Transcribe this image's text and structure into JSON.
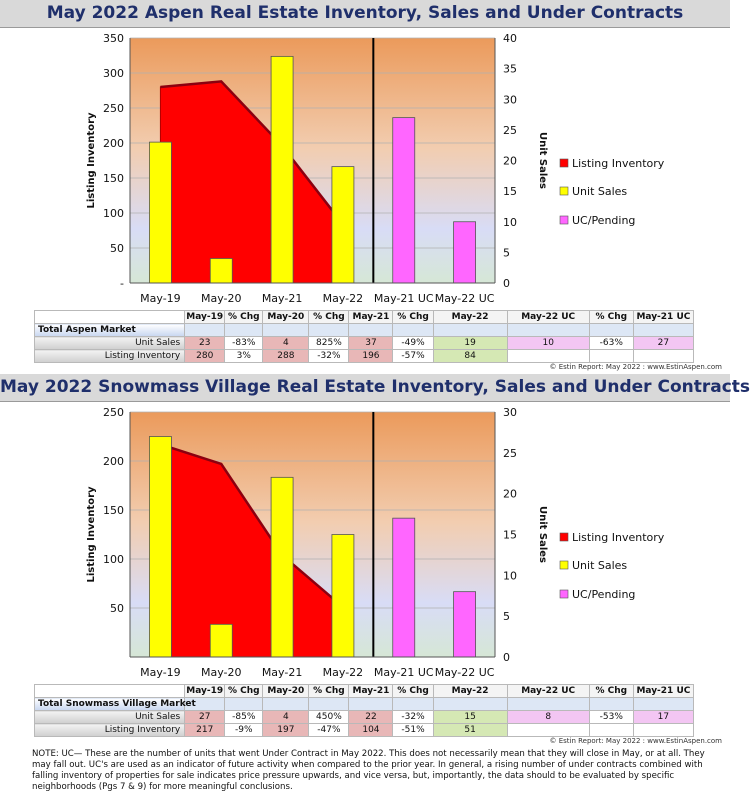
{
  "panels": [
    {
      "title": "May 2022 Aspen Real Estate Inventory, Sales and Under Contracts",
      "chart_data": {
        "type": "bar",
        "categories": [
          "May-19",
          "May-20",
          "May-21",
          "May-22",
          "May-21 UC",
          "May-22 UC"
        ],
        "ylabel": "Listing Inventory",
        "y2label": "Unit Sales",
        "ylim": [
          0,
          350
        ],
        "y2lim": [
          0,
          40
        ],
        "yticks": [
          "350",
          "300",
          "250",
          "200",
          "150",
          "100",
          "50",
          "-"
        ],
        "y2ticks": [
          "40",
          "35",
          "30",
          "25",
          "20",
          "15",
          "10",
          "5",
          "0"
        ],
        "series": [
          {
            "name": "Listing Inventory",
            "type": "area",
            "axis": "left",
            "color": "#ff0000",
            "values": [
              280,
              288,
              196,
              84,
              null,
              null
            ]
          },
          {
            "name": "Unit Sales",
            "type": "bar",
            "axis": "right",
            "color": "#ffff00",
            "values": [
              23,
              4,
              37,
              19,
              null,
              null
            ]
          },
          {
            "name": "UC/Pending",
            "type": "bar",
            "axis": "right",
            "color": "#ff66ff",
            "values": [
              null,
              null,
              null,
              null,
              27,
              10
            ]
          }
        ],
        "legend": [
          "Listing Inventory",
          "Unit Sales",
          "UC/Pending"
        ],
        "legend_position": "right"
      },
      "table": {
        "market": "Total Aspen Market",
        "headers": [
          "May-19",
          "% Chg",
          "May-20",
          "% Chg",
          "May-21",
          "% Chg",
          "May-22",
          "May-22 UC",
          "% Chg",
          "May-21 UC"
        ],
        "rows": [
          {
            "label": "Unit Sales",
            "cells": [
              "23",
              "-83%",
              "4",
              "825%",
              "37",
              "-49%",
              "19",
              "10",
              "-63%",
              "27"
            ]
          },
          {
            "label": "Listing Inventory",
            "cells": [
              "280",
              "3%",
              "288",
              "-32%",
              "196",
              "-57%",
              "84",
              "",
              "",
              ""
            ]
          }
        ]
      },
      "credit": "© Estin Report: May 2022 : www.EstinAspen.com"
    },
    {
      "title": "May 2022 Snowmass Village Real Estate Inventory, Sales and Under Contracts",
      "chart_data": {
        "type": "bar",
        "categories": [
          "May-19",
          "May-20",
          "May-21",
          "May-22",
          "May-21 UC",
          "May-22 UC"
        ],
        "ylabel": "Listing Inventory",
        "y2label": "Unit Sales",
        "ylim": [
          0,
          250
        ],
        "y2lim": [
          0,
          30
        ],
        "yticks": [
          "250",
          "200",
          "150",
          "100",
          "50",
          ""
        ],
        "y2ticks": [
          "30",
          "25",
          "20",
          "15",
          "10",
          "5",
          "0"
        ],
        "series": [
          {
            "name": "Listing Inventory",
            "type": "area",
            "axis": "left",
            "color": "#ff0000",
            "values": [
              217,
              197,
              104,
              51,
              null,
              null
            ]
          },
          {
            "name": "Unit Sales",
            "type": "bar",
            "axis": "right",
            "color": "#ffff00",
            "values": [
              27,
              4,
              22,
              15,
              null,
              null
            ]
          },
          {
            "name": "UC/Pending",
            "type": "bar",
            "axis": "right",
            "color": "#ff66ff",
            "values": [
              null,
              null,
              null,
              null,
              17,
              8
            ]
          }
        ],
        "legend": [
          "Listing Inventory",
          "Unit Sales",
          "UC/Pending"
        ],
        "legend_position": "right"
      },
      "table": {
        "market": "Total Snowmass Village Market",
        "headers": [
          "May-19",
          "% Chg",
          "May-20",
          "% Chg",
          "May-21",
          "% Chg",
          "May-22",
          "May-22 UC",
          "% Chg",
          "May-21 UC"
        ],
        "rows": [
          {
            "label": "Unit Sales",
            "cells": [
              "27",
              "-85%",
              "4",
              "450%",
              "22",
              "-32%",
              "15",
              "8",
              "-53%",
              "17"
            ]
          },
          {
            "label": "Listing Inventory",
            "cells": [
              "217",
              "-9%",
              "197",
              "-47%",
              "104",
              "-51%",
              "51",
              "",
              "",
              ""
            ]
          }
        ]
      },
      "credit": "© Estin Report: May 2022 : www.EstinAspen.com"
    }
  ],
  "note": "NOTE: UC— These are the number of units that went Under Contract in May 2022. This does not necessarily mean that they will close in May, or at all. They may fall out. UC's are used as an indicator of future activity when compared to the prior year. In general, a rising number of under contracts combined with falling inventory of properties for sale indicates price pressure upwards, and vice versa, but, importantly, the data should to be evaluated by specific neighborhoods (Pgs 7 & 9) for more meaningful conclusions."
}
